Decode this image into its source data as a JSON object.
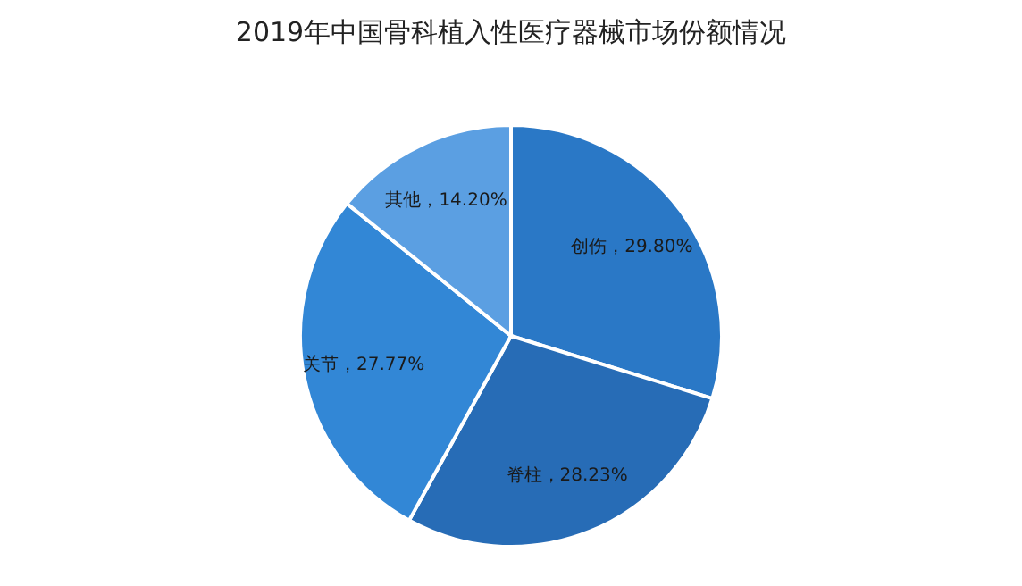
{
  "chart_data": {
    "type": "pie",
    "title": "2019年中国骨科植入性医疗器械市场份额情况",
    "categories": [
      "创伤",
      "脊柱",
      "关节",
      "其他"
    ],
    "values": [
      29.8,
      28.23,
      27.77,
      14.2
    ],
    "colors": [
      "#2a78c6",
      "#276cb6",
      "#3287d6",
      "#5b9fe2"
    ],
    "value_labels": [
      "29.80%",
      "28.23%",
      "27.77%",
      "14.20%"
    ],
    "legend": false
  }
}
